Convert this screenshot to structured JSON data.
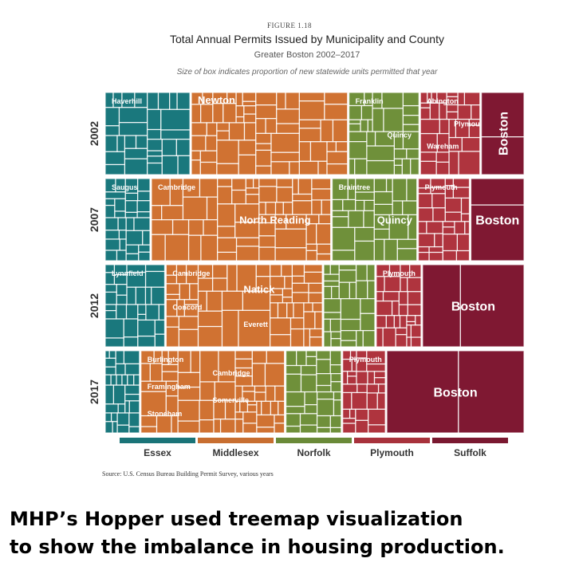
{
  "figure_label": "FIGURE 1.18",
  "title": "Total Annual Permits Issued by Municipality and County",
  "subtitle": "Greater Boston 2002–2017",
  "note": "Size of box indicates proportion of new statewide units permitted that year",
  "source": "Source: U.S. Census Bureau Building Permit Survey, various years",
  "caption": {
    "line1": "MHP’s Hopper used treemap visualization",
    "line2": "to show the imbalance in housing production."
  },
  "colors": {
    "Essex": "#1a7478",
    "Middlesex": "#c86e30",
    "Norfolk": "#6a8a38",
    "Plymouth": "#a8323c",
    "Suffolk": "#7a1830"
  },
  "chart_data": {
    "type": "treemap",
    "legend": [
      "Essex",
      "Middlesex",
      "Norfolk",
      "Plymouth",
      "Suffolk"
    ],
    "years": [
      {
        "year": "2002",
        "counties": [
          {
            "name": "Essex",
            "share": 0.205,
            "labels": [
              "Haverhill"
            ]
          },
          {
            "name": "Middlesex",
            "share": 0.375,
            "labels": [
              "Newton"
            ]
          },
          {
            "name": "Norfolk",
            "share": 0.17,
            "labels": [
              "Franklin",
              "Quincy"
            ]
          },
          {
            "name": "Plymouth",
            "share": 0.145,
            "labels": [
              "Abington",
              "Plymouth",
              "Wareham"
            ]
          },
          {
            "name": "Suffolk",
            "share": 0.105,
            "labels": [
              "Boston"
            ]
          }
        ]
      },
      {
        "year": "2007",
        "counties": [
          {
            "name": "Essex",
            "share": 0.11,
            "labels": [
              "Saugus"
            ]
          },
          {
            "name": "Middlesex",
            "share": 0.43,
            "labels": [
              "Cambridge",
              "North Reading"
            ]
          },
          {
            "name": "Norfolk",
            "share": 0.205,
            "labels": [
              "Braintree",
              "Quincy"
            ]
          },
          {
            "name": "Plymouth",
            "share": 0.125,
            "labels": [
              "Plymouth"
            ]
          },
          {
            "name": "Suffolk",
            "share": 0.13,
            "labels": [
              "Boston"
            ]
          }
        ]
      },
      {
        "year": "2012",
        "counties": [
          {
            "name": "Essex",
            "share": 0.145,
            "labels": [
              "Lynnfield"
            ]
          },
          {
            "name": "Middlesex",
            "share": 0.375,
            "labels": [
              "Cambridge",
              "Natick",
              "Concord",
              "Everett"
            ]
          },
          {
            "name": "Norfolk",
            "share": 0.125,
            "labels": []
          },
          {
            "name": "Plymouth",
            "share": 0.11,
            "labels": [
              "Plymouth"
            ]
          },
          {
            "name": "Suffolk",
            "share": 0.245,
            "labels": [
              "Boston"
            ]
          }
        ]
      },
      {
        "year": "2017",
        "counties": [
          {
            "name": "Essex",
            "share": 0.085,
            "labels": []
          },
          {
            "name": "Middlesex",
            "share": 0.345,
            "labels": [
              "Burlington",
              "Cambridge",
              "Framingham",
              "Somerville",
              "Stoneham"
            ]
          },
          {
            "name": "Norfolk",
            "share": 0.135,
            "labels": []
          },
          {
            "name": "Plymouth",
            "share": 0.105,
            "labels": [
              "Plymouth"
            ]
          },
          {
            "name": "Suffolk",
            "share": 0.33,
            "labels": [
              "Boston"
            ]
          }
        ]
      }
    ]
  }
}
